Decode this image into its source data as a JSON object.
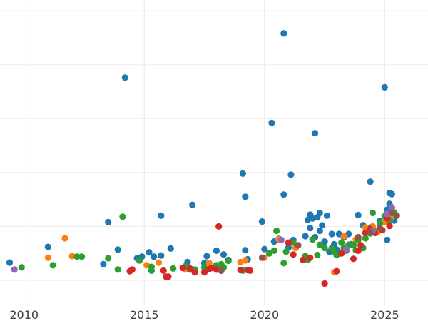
{
  "chart_data": {
    "type": "scatter",
    "title": "",
    "xlabel": "",
    "ylabel": "",
    "grid": true,
    "xlim": [
      2009.0,
      2026.8
    ],
    "ylim": [
      -0.45,
      5.2
    ],
    "x_ticks": [
      2010,
      2015,
      2020,
      2025
    ],
    "x_tick_labels": [
      "2010",
      "2015",
      "2020",
      "2025"
    ],
    "y_gridlines": [
      0,
      1,
      2,
      3,
      4,
      5
    ],
    "colors": {
      "blue": "#1f77b4",
      "orange": "#ff7f0e",
      "green": "#2ca02c",
      "red": "#d62728",
      "purple": "#9467bd",
      "brown": "#8c564b"
    },
    "series": [
      {
        "color_key": "blue",
        "points": [
          [
            2009.4,
            0.33
          ],
          [
            2011.0,
            0.62
          ],
          [
            2013.3,
            0.3
          ],
          [
            2013.5,
            1.08
          ],
          [
            2013.9,
            0.57
          ],
          [
            2014.2,
            3.76
          ],
          [
            2014.7,
            0.41
          ],
          [
            2014.9,
            0.44
          ],
          [
            2015.2,
            0.52
          ],
          [
            2015.4,
            0.44
          ],
          [
            2015.7,
            1.2
          ],
          [
            2015.7,
            0.46
          ],
          [
            2016.1,
            0.59
          ],
          [
            2016.8,
            0.34
          ],
          [
            2017.0,
            1.4
          ],
          [
            2017.5,
            0.32
          ],
          [
            2017.6,
            0.45
          ],
          [
            2018.0,
            0.55
          ],
          [
            2018.3,
            0.48
          ],
          [
            2018.5,
            0.38
          ],
          [
            2019.1,
            1.98
          ],
          [
            2019.2,
            1.55
          ],
          [
            2019.2,
            0.56
          ],
          [
            2019.3,
            0.39
          ],
          [
            2019.9,
            1.09
          ],
          [
            2020.0,
            0.58
          ],
          [
            2020.3,
            2.92
          ],
          [
            2020.4,
            0.72
          ],
          [
            2020.6,
            0.77
          ],
          [
            2020.8,
            1.59
          ],
          [
            2020.8,
            4.58
          ],
          [
            2021.0,
            0.61
          ],
          [
            2021.1,
            1.96
          ],
          [
            2021.2,
            0.75
          ],
          [
            2021.7,
            0.82
          ],
          [
            2021.8,
            1.12
          ],
          [
            2021.9,
            1.22
          ],
          [
            2021.9,
            0.97
          ],
          [
            2022.0,
            1.15
          ],
          [
            2022.1,
            0.8
          ],
          [
            2022.1,
            2.73
          ],
          [
            2022.2,
            1.17
          ],
          [
            2022.3,
            1.25
          ],
          [
            2022.3,
            0.92
          ],
          [
            2022.4,
            1.02
          ],
          [
            2022.5,
            0.72
          ],
          [
            2022.6,
            1.2
          ],
          [
            2022.7,
            0.53
          ],
          [
            2022.8,
            0.86
          ],
          [
            2022.9,
            0.67
          ],
          [
            2023.0,
            0.57
          ],
          [
            2023.1,
            0.86
          ],
          [
            2023.3,
            0.8
          ],
          [
            2023.5,
            0.86
          ],
          [
            2023.6,
            0.67
          ],
          [
            2023.9,
            1.21
          ],
          [
            2024.1,
            1.02
          ],
          [
            2024.2,
            0.88
          ],
          [
            2024.4,
            0.98
          ],
          [
            2024.4,
            1.83
          ],
          [
            2024.7,
            0.92
          ],
          [
            2024.8,
            1.1
          ],
          [
            2025.0,
            3.58
          ],
          [
            2025.1,
            0.75
          ],
          [
            2025.1,
            1.31
          ],
          [
            2025.2,
            1.62
          ],
          [
            2025.3,
            1.6
          ],
          [
            2025.2,
            1.42
          ],
          [
            2025.4,
            1.11
          ]
        ]
      },
      {
        "color_key": "orange",
        "points": [
          [
            2011.0,
            0.42
          ],
          [
            2011.7,
            0.78
          ],
          [
            2012.0,
            0.45
          ],
          [
            2015.1,
            0.28
          ],
          [
            2015.6,
            0.33
          ],
          [
            2016.7,
            0.2
          ],
          [
            2017.1,
            0.18
          ],
          [
            2017.7,
            0.32
          ],
          [
            2018.0,
            0.22
          ],
          [
            2019.0,
            0.34
          ],
          [
            2019.2,
            0.37
          ],
          [
            2020.0,
            0.42
          ],
          [
            2020.6,
            0.76
          ],
          [
            2021.3,
            0.6
          ],
          [
            2022.9,
            0.15
          ],
          [
            2023.3,
            0.82
          ],
          [
            2023.8,
            0.76
          ],
          [
            2024.2,
            0.98
          ],
          [
            2024.5,
            1.0
          ],
          [
            2024.7,
            0.9
          ],
          [
            2025.0,
            1.08
          ],
          [
            2025.3,
            1.18
          ]
        ]
      },
      {
        "color_key": "green",
        "points": [
          [
            2009.9,
            0.24
          ],
          [
            2011.2,
            0.28
          ],
          [
            2012.2,
            0.44
          ],
          [
            2012.4,
            0.44
          ],
          [
            2013.5,
            0.41
          ],
          [
            2013.9,
            0.2
          ],
          [
            2014.1,
            1.18
          ],
          [
            2014.8,
            0.37
          ],
          [
            2015.3,
            0.25
          ],
          [
            2015.3,
            0.18
          ],
          [
            2016.2,
            0.22
          ],
          [
            2016.7,
            0.26
          ],
          [
            2016.9,
            0.2
          ],
          [
            2017.1,
            0.2
          ],
          [
            2017.5,
            0.24
          ],
          [
            2018.0,
            0.28
          ],
          [
            2018.2,
            0.3
          ],
          [
            2018.3,
            0.24
          ],
          [
            2018.5,
            0.36
          ],
          [
            2019.1,
            0.18
          ],
          [
            2020.2,
            0.5
          ],
          [
            2020.4,
            0.55
          ],
          [
            2020.5,
            0.92
          ],
          [
            2020.8,
            0.32
          ],
          [
            2020.9,
            0.53
          ],
          [
            2021.2,
            0.7
          ],
          [
            2021.7,
            0.45
          ],
          [
            2021.8,
            0.38
          ],
          [
            2022.0,
            0.76
          ],
          [
            2022.2,
            0.47
          ],
          [
            2022.3,
            0.66
          ],
          [
            2022.5,
            0.6
          ],
          [
            2022.8,
            0.6
          ],
          [
            2022.9,
            0.53
          ],
          [
            2023.0,
            0.47
          ],
          [
            2023.2,
            0.7
          ],
          [
            2023.3,
            0.6
          ],
          [
            2023.4,
            0.55
          ],
          [
            2023.5,
            0.66
          ],
          [
            2023.7,
            0.66
          ],
          [
            2023.8,
            0.56
          ],
          [
            2023.9,
            0.75
          ],
          [
            2024.1,
            0.6
          ],
          [
            2024.2,
            0.78
          ],
          [
            2024.4,
            0.87
          ],
          [
            2024.5,
            1.25
          ],
          [
            2024.8,
            1.05
          ],
          [
            2025.0,
            1.19
          ],
          [
            2025.2,
            1.12
          ],
          [
            2025.4,
            1.26
          ]
        ]
      },
      {
        "color_key": "red",
        "points": [
          [
            2014.4,
            0.17
          ],
          [
            2014.5,
            0.2
          ],
          [
            2015.8,
            0.18
          ],
          [
            2015.9,
            0.07
          ],
          [
            2016.0,
            0.07
          ],
          [
            2016.6,
            0.23
          ],
          [
            2016.9,
            0.22
          ],
          [
            2017.1,
            0.15
          ],
          [
            2017.5,
            0.15
          ],
          [
            2017.7,
            0.21
          ],
          [
            2017.8,
            0.23
          ],
          [
            2018.0,
            0.2
          ],
          [
            2018.2,
            0.18
          ],
          [
            2018.1,
            1.0
          ],
          [
            2019.0,
            0.19
          ],
          [
            2019.3,
            0.19
          ],
          [
            2019.4,
            0.18
          ],
          [
            2021.0,
            0.7
          ],
          [
            2021.2,
            0.48
          ],
          [
            2021.6,
            0.38
          ],
          [
            2021.9,
            0.42
          ],
          [
            2022.5,
            -0.06
          ],
          [
            2023.0,
            0.17
          ],
          [
            2023.2,
            0.5
          ],
          [
            2023.7,
            0.4
          ],
          [
            2023.9,
            0.55
          ],
          [
            2024.0,
            0.65
          ],
          [
            2024.2,
            0.88
          ],
          [
            2024.4,
            0.95
          ],
          [
            2024.6,
            0.88
          ],
          [
            2024.9,
            0.93
          ],
          [
            2025.1,
            1.15
          ],
          [
            2025.2,
            1.01
          ],
          [
            2025.5,
            1.2
          ]
        ]
      },
      {
        "color_key": "purple",
        "points": [
          [
            2009.6,
            0.2
          ],
          [
            2020.7,
            0.75
          ],
          [
            2023.4,
            0.58
          ],
          [
            2024.5,
            0.92
          ],
          [
            2025.1,
            1.23
          ],
          [
            2025.3,
            1.35
          ]
        ]
      },
      {
        "color_key": "brown",
        "points": [
          [
            2018.2,
            0.18
          ],
          [
            2019.9,
            0.42
          ],
          [
            2021.4,
            0.65
          ],
          [
            2023.9,
            0.8
          ],
          [
            2024.4,
            0.89
          ],
          [
            2024.8,
            0.97
          ],
          [
            2025.3,
            1.25
          ],
          [
            2025.5,
            1.2
          ]
        ]
      }
    ]
  }
}
